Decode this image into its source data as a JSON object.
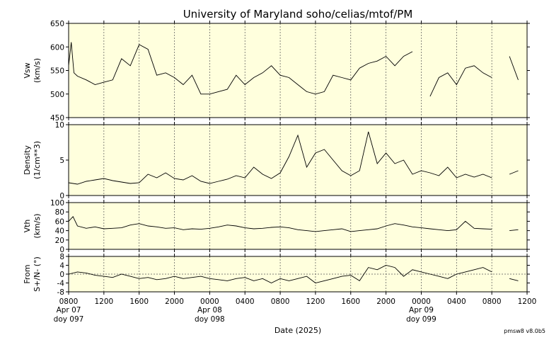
{
  "title": "University of Maryland  soho/celias/mtof/PM",
  "xlabel": "Date (2025)",
  "version": "pmsw8 v8.0b5",
  "x_ticks": [
    "0800",
    "1200",
    "1600",
    "2000",
    "0000",
    "0400",
    "0800",
    "1200",
    "1600",
    "2000",
    "0000",
    "0400",
    "0800",
    "1200"
  ],
  "day_labels": [
    {
      "tick_index": 0,
      "lines": [
        "Apr 07",
        "doy 097"
      ]
    },
    {
      "tick_index": 4,
      "lines": [
        "Apr 08",
        "doy 098"
      ]
    },
    {
      "tick_index": 10,
      "lines": [
        "Apr 09",
        "doy 099"
      ]
    }
  ],
  "colors": {
    "plot_bg": "#ffffdd",
    "line": "#000000",
    "grid": "#555555"
  },
  "chart_data": [
    {
      "type": "line",
      "ylabel": [
        "Vsw",
        "(km/s)"
      ],
      "x_range_hours": [
        0,
        52
      ],
      "ylim": [
        450,
        650
      ],
      "yticks": [
        450,
        500,
        550,
        600,
        650
      ],
      "series": [
        {
          "x": [
            0,
            0.3,
            0.6,
            1,
            2,
            3,
            4,
            5,
            6,
            7,
            8,
            9,
            10,
            11,
            12,
            13,
            14,
            15,
            16,
            17,
            18,
            19,
            20,
            21,
            22,
            23,
            24,
            25,
            26,
            27,
            28,
            29,
            30,
            31,
            32,
            33,
            34,
            35,
            36,
            37,
            38,
            39,
            40,
            41,
            42,
            43,
            44,
            45,
            46,
            47,
            48,
            49,
            50,
            51
          ],
          "y": [
            560,
            610,
            545,
            538,
            530,
            520,
            525,
            530,
            575,
            560,
            605,
            595,
            540,
            545,
            535,
            520,
            540,
            500,
            500,
            505,
            510,
            540,
            520,
            535,
            545,
            560,
            540,
            535,
            520,
            505,
            500,
            505,
            540,
            535,
            530,
            555,
            565,
            570,
            580,
            560,
            580,
            590,
            null,
            495,
            535,
            545,
            520,
            555,
            560,
            545,
            535,
            null,
            580,
            530
          ]
        }
      ]
    },
    {
      "type": "line",
      "ylabel": [
        "Density",
        "(1/cm**3)"
      ],
      "x_range_hours": [
        0,
        52
      ],
      "ylim": [
        0,
        10
      ],
      "yticks": [
        0,
        5,
        10
      ],
      "series": [
        {
          "x": [
            0,
            1,
            2,
            3,
            4,
            5,
            6,
            7,
            8,
            9,
            10,
            11,
            12,
            13,
            14,
            15,
            16,
            17,
            18,
            19,
            20,
            21,
            22,
            23,
            24,
            25,
            26,
            27,
            28,
            29,
            30,
            31,
            32,
            33,
            34,
            35,
            36,
            37,
            38,
            39,
            40,
            41,
            42,
            43,
            44,
            45,
            46,
            47,
            48,
            49,
            50,
            51
          ],
          "y": [
            1.8,
            1.6,
            2.0,
            2.2,
            2.4,
            2.1,
            1.9,
            1.7,
            1.8,
            3.0,
            2.5,
            3.2,
            2.4,
            2.2,
            2.8,
            2.0,
            1.7,
            2.0,
            2.3,
            2.8,
            2.5,
            4.0,
            3.0,
            2.4,
            3.2,
            5.5,
            8.5,
            4.0,
            6.0,
            6.5,
            5.0,
            3.5,
            2.8,
            3.5,
            9.0,
            4.5,
            6.0,
            4.5,
            5.0,
            3.0,
            3.5,
            3.2,
            2.8,
            4.0,
            2.5,
            3.0,
            2.6,
            3.0,
            2.5,
            null,
            3.0,
            3.5
          ]
        }
      ]
    },
    {
      "type": "line",
      "ylabel": [
        "Vth",
        "(km/s)"
      ],
      "x_range_hours": [
        0,
        52
      ],
      "ylim": [
        0,
        100
      ],
      "yticks": [
        0,
        20,
        40,
        60,
        80,
        100
      ],
      "series": [
        {
          "x": [
            0,
            0.5,
            1,
            2,
            3,
            4,
            5,
            6,
            7,
            8,
            9,
            10,
            11,
            12,
            13,
            14,
            15,
            16,
            17,
            18,
            19,
            20,
            21,
            22,
            23,
            24,
            25,
            26,
            27,
            28,
            29,
            30,
            31,
            32,
            33,
            34,
            35,
            36,
            37,
            38,
            39,
            40,
            41,
            42,
            43,
            44,
            45,
            46,
            47,
            48,
            49,
            50,
            51
          ],
          "y": [
            60,
            70,
            50,
            45,
            48,
            44,
            45,
            46,
            52,
            55,
            50,
            48,
            45,
            46,
            42,
            44,
            43,
            45,
            48,
            52,
            50,
            46,
            44,
            45,
            47,
            48,
            46,
            42,
            40,
            38,
            40,
            42,
            44,
            38,
            40,
            42,
            44,
            50,
            55,
            52,
            48,
            46,
            44,
            42,
            40,
            42,
            60,
            45,
            44,
            43,
            null,
            40,
            42
          ]
        }
      ]
    },
    {
      "type": "line",
      "ylabel": [
        "From",
        "S+/N- (°)"
      ],
      "x_range_hours": [
        0,
        52
      ],
      "ylim": [
        -8,
        8
      ],
      "yticks": [
        -8,
        -4,
        0,
        4,
        8
      ],
      "reference_line": 0,
      "series": [
        {
          "x": [
            0,
            1,
            2,
            3,
            4,
            5,
            6,
            7,
            8,
            9,
            10,
            11,
            12,
            13,
            14,
            15,
            16,
            17,
            18,
            19,
            20,
            21,
            22,
            23,
            24,
            25,
            26,
            27,
            28,
            29,
            30,
            31,
            32,
            33,
            34,
            35,
            36,
            37,
            38,
            39,
            40,
            41,
            42,
            43,
            44,
            45,
            46,
            47,
            48,
            49,
            50,
            51
          ],
          "y": [
            0,
            1,
            0.5,
            -0.5,
            -1,
            -1.5,
            0,
            -1,
            -2,
            -1.5,
            -2.5,
            -2,
            -1,
            -2,
            -1.5,
            -1,
            -2,
            -2.5,
            -3,
            -2,
            -1.5,
            -3,
            -2,
            -4,
            -2,
            -3,
            -2,
            -1,
            -4,
            -3,
            -2,
            -1,
            -0.5,
            -3,
            3,
            2,
            4,
            3,
            -1,
            2,
            1,
            0,
            -1,
            -2,
            0,
            1,
            2,
            3,
            1,
            null,
            -2,
            -3
          ]
        }
      ]
    }
  ]
}
